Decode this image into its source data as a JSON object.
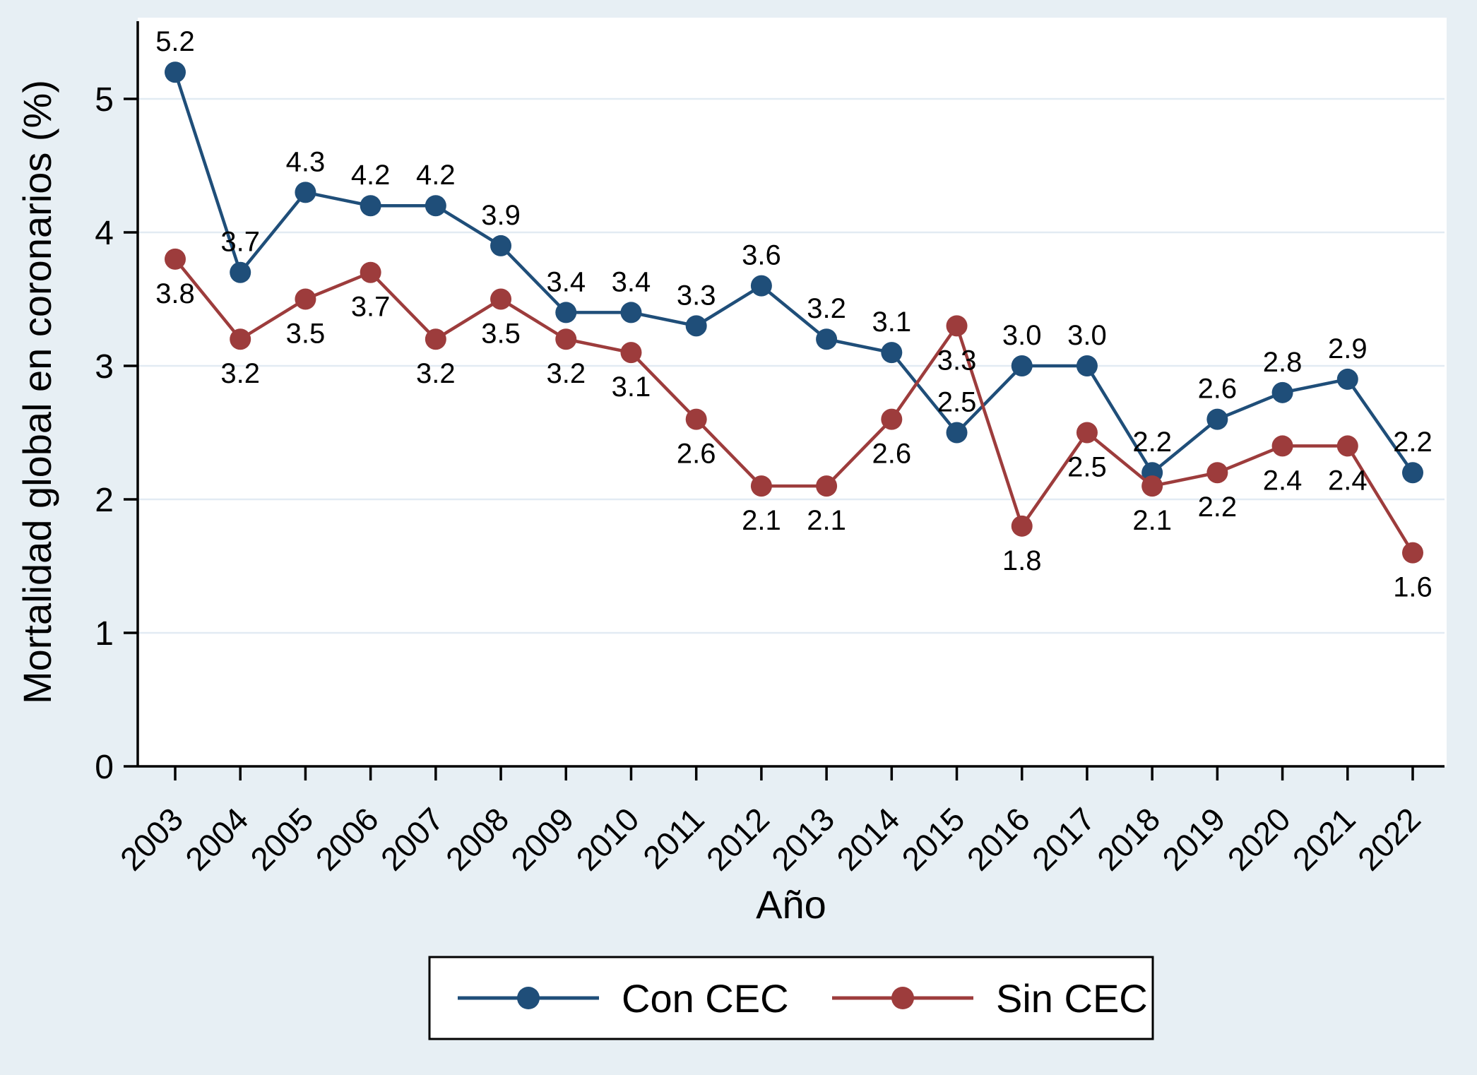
{
  "figure": {
    "background_color": "#e7eff4",
    "plot_background_color": "#ffffff",
    "grid_color": "#e2ebf3",
    "axis_color": "#000000",
    "legend_border_color": "#000000",
    "legend_background_color": "#ffffff"
  },
  "chart_data": {
    "type": "line",
    "title": "",
    "xlabel": "Año",
    "ylabel": "Mortalidad global en coronarios (%)",
    "x": [
      "2003",
      "2004",
      "2005",
      "2006",
      "2007",
      "2008",
      "2009",
      "2010",
      "2011",
      "2012",
      "2013",
      "2014",
      "2015",
      "2016",
      "2017",
      "2018",
      "2019",
      "2020",
      "2021",
      "2022"
    ],
    "ylim": [
      0,
      5.45
    ],
    "yticks": [
      0,
      1,
      2,
      3,
      4,
      5
    ],
    "grid": true,
    "legend_position": "bottom",
    "point_labels": true,
    "series": [
      {
        "name": "Con CEC",
        "color": "#1f4e79",
        "label_position": "above",
        "values": [
          5.2,
          3.7,
          4.3,
          4.2,
          4.2,
          3.9,
          3.4,
          3.4,
          3.3,
          3.6,
          3.2,
          3.1,
          2.5,
          3.0,
          3.0,
          2.2,
          2.6,
          2.8,
          2.9,
          2.2
        ]
      },
      {
        "name": "Sin CEC",
        "color": "#9d3c3c",
        "label_position": "below",
        "values": [
          3.8,
          3.2,
          3.5,
          3.7,
          3.2,
          3.5,
          3.2,
          3.1,
          2.6,
          2.1,
          2.1,
          2.6,
          3.3,
          1.8,
          2.5,
          2.1,
          2.2,
          2.4,
          2.4,
          1.6
        ]
      }
    ]
  }
}
